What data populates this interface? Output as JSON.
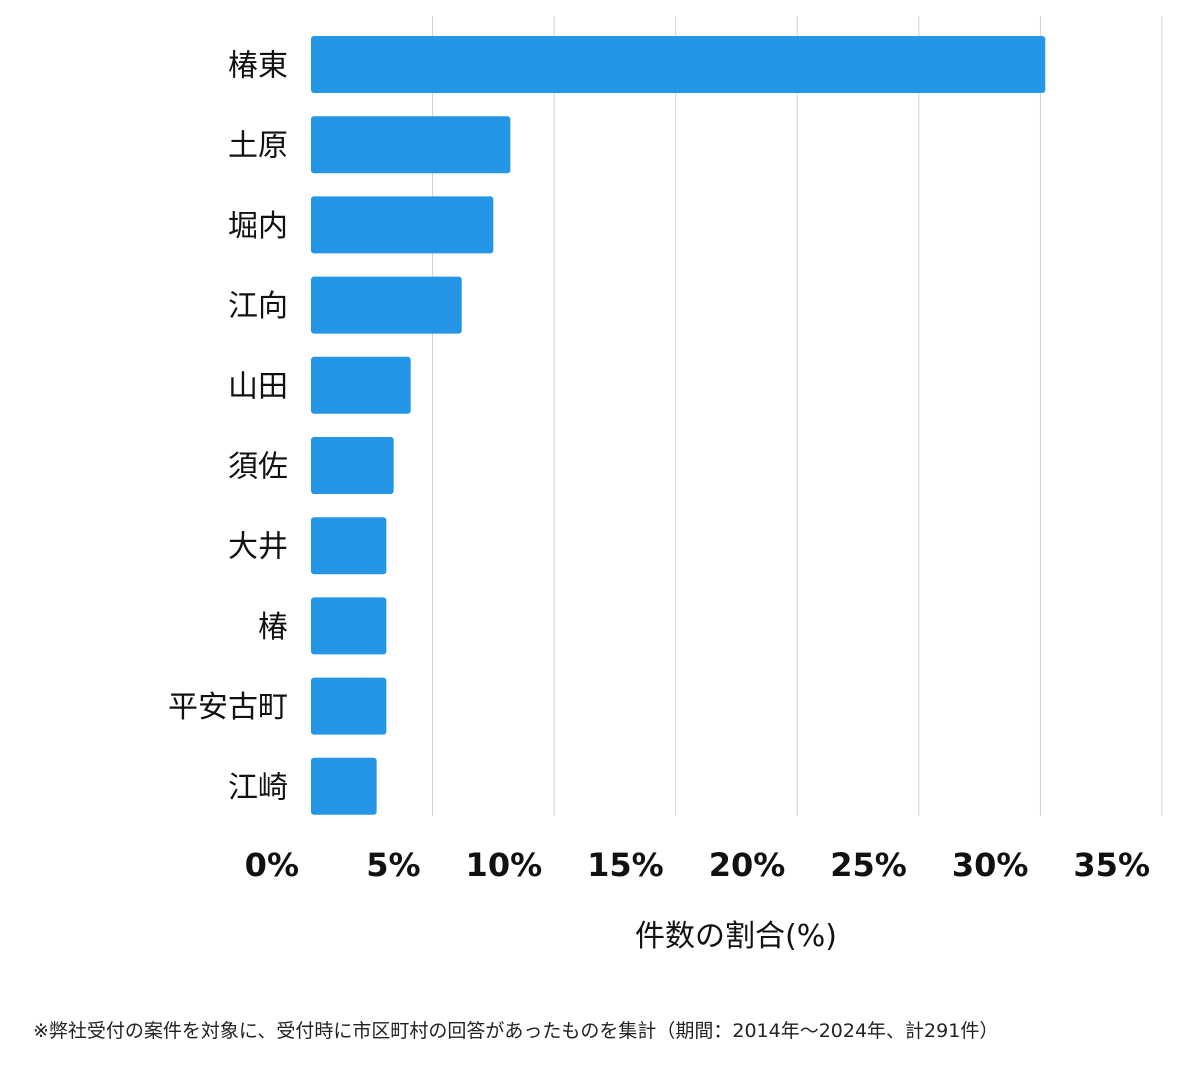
{
  "chart_data": {
    "type": "bar",
    "orientation": "horizontal",
    "categories": [
      "椿東",
      "土原",
      "堀内",
      "江向",
      "山田",
      "須佐",
      "大井",
      "椿",
      "平安古町",
      "江崎"
    ],
    "values": [
      30.2,
      8.2,
      7.5,
      6.2,
      4.1,
      3.4,
      3.1,
      3.1,
      3.1,
      2.7
    ],
    "xlabel": "件数の割合(%)",
    "ylabel": "",
    "xlim": [
      0,
      35
    ],
    "ticks": [
      "0%",
      "5%",
      "10%",
      "15%",
      "20%",
      "25%",
      "30%",
      "35%"
    ],
    "grid": "vertical",
    "bar_color": "#2596e6",
    "grid_color": "#d0d0d0"
  },
  "footnote": "※弊社受付の案件を対象に、受付時に市区町村の回答があったものを集計（期間：2014年～2024年、計291件）"
}
